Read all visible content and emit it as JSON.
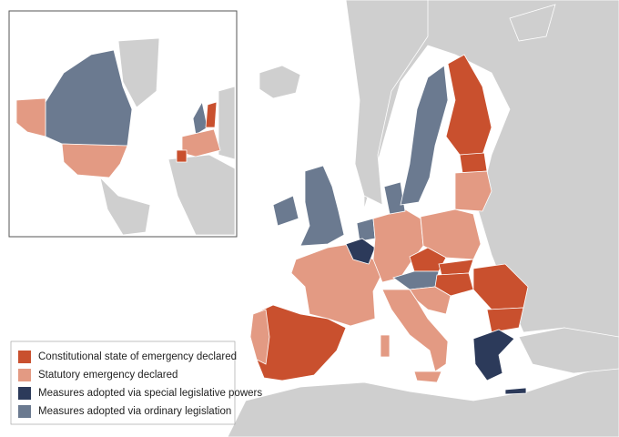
{
  "legend": {
    "items": [
      {
        "label": "Constitutional state of emergency declared",
        "color": "#c9502e"
      },
      {
        "label": "Statutory emergency declared",
        "color": "#e39a83"
      },
      {
        "label": "Measures adopted via special legislative powers",
        "color": "#2c3a5a"
      },
      {
        "label": "Measures adopted via ordinary legislation",
        "color": "#6b7a90"
      }
    ]
  }
}
